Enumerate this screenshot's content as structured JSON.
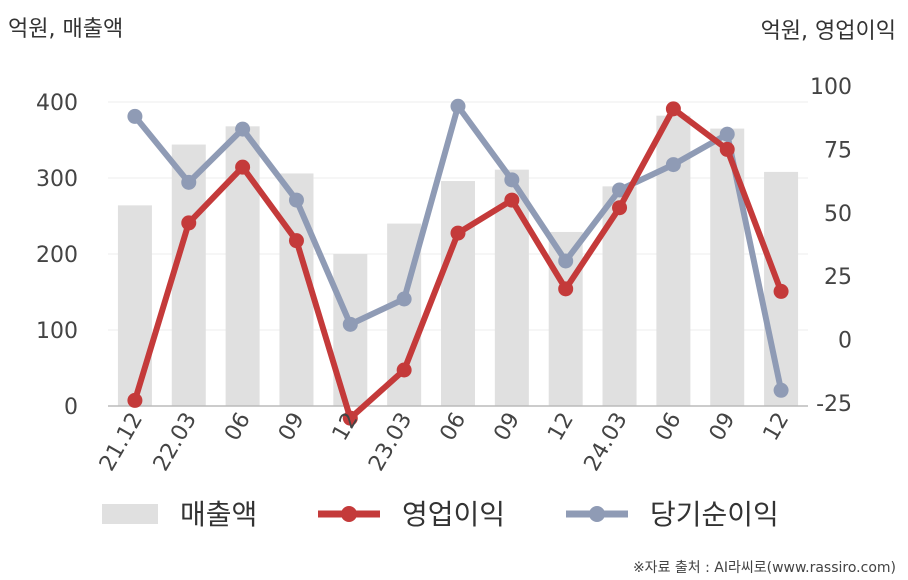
{
  "chart_data": {
    "type": "bar+line",
    "categories": [
      "21.12",
      "22.03",
      "06",
      "09",
      "12",
      "23.03",
      "06",
      "09",
      "12",
      "24.03",
      "06",
      "09",
      "12"
    ],
    "left_axis": {
      "title": "억원, 매출액",
      "range": [
        0,
        400
      ],
      "ticks": [
        "0",
        "100",
        "200",
        "300",
        "400"
      ],
      "tick_values": [
        0,
        100,
        200,
        300,
        400
      ]
    },
    "right_axis": {
      "title": "억원, 영업이익",
      "range": [
        -40,
        100
      ],
      "ticks": [
        "-25",
        "0",
        "25",
        "50",
        "75",
        "100"
      ],
      "tick_values": [
        -25,
        0,
        25,
        50,
        75,
        100
      ]
    },
    "series": [
      {
        "name": "매출액",
        "kind": "bar",
        "axis": "left",
        "color": "#e0e0e0",
        "values": [
          264,
          344,
          368,
          306,
          200,
          240,
          296,
          311,
          229,
          289,
          382,
          365,
          308
        ]
      },
      {
        "name": "영업이익",
        "kind": "line",
        "axis": "right",
        "color": "#c43a3a",
        "values": [
          -24,
          46,
          68,
          39,
          -31,
          -12,
          42,
          55,
          20,
          52,
          91,
          75,
          19
        ]
      },
      {
        "name": "당기순이익",
        "kind": "line",
        "axis": "right",
        "color": "#8f9bb5",
        "values": [
          88,
          62,
          83,
          55,
          6,
          16,
          92,
          63,
          31,
          59,
          69,
          81,
          -20
        ]
      }
    ],
    "grid": true,
    "legend": "bottom"
  },
  "source": "※자료 출처 : AI라씨로(www.rassiro.com)"
}
